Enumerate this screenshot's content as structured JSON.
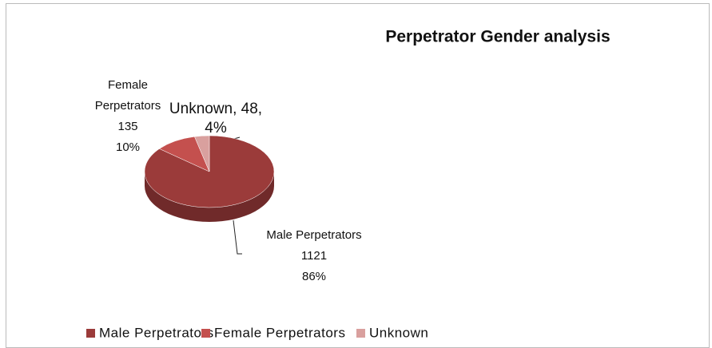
{
  "chart_data": {
    "type": "pie",
    "title": "Perpetrator Gender analysis",
    "categories": [
      "Male Perpetrators",
      "Female Perpetrators",
      "Unknown"
    ],
    "values": [
      1121,
      135,
      48
    ],
    "colors": [
      "#9b3b3a",
      "#c4504e",
      "#d9a09e"
    ],
    "data_labels": [
      [
        "Male Perpetrators",
        "1121",
        "86%"
      ],
      [
        "Female",
        "Perpetrators",
        "135",
        "10%"
      ],
      [
        "Unknown, 48,",
        "4%"
      ]
    ],
    "legend": "bottom"
  }
}
